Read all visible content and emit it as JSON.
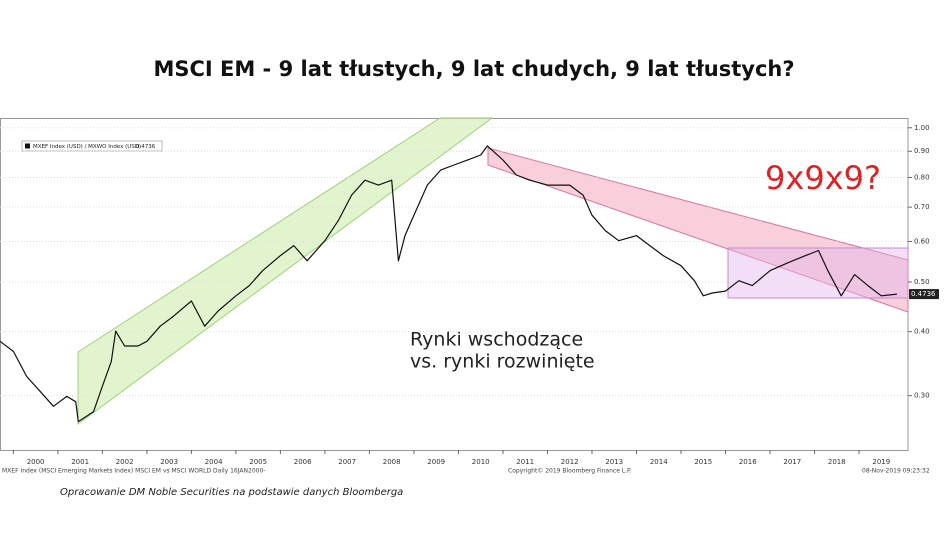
{
  "chart_data": {
    "type": "line",
    "title": "MSCI EM -  9 lat tłustych, 9 lat chudych, 9 lat tłustych?",
    "annotations": [
      "9x9x9?",
      "Rynki wschodzące",
      "vs. rynki rozwinięte"
    ],
    "footer_left": "MXEF Index (MSCI Emerging Markets Index) MSCI EM vs MSCI WORLD  Daily 16JAN2000-",
    "footer_center": "Copyright© 2019 Bloomberg Finance L.P.",
    "footer_right": "08-Nov-2019 09:23:32",
    "source": "Opracowanie DM Noble Securities na podstawie danych Bloomberga",
    "last_value": 0.4736,
    "log_scale": true,
    "grid": true,
    "x": [
      1999.7,
      2000.0,
      2000.3,
      2000.6,
      2000.9,
      2001.2,
      2001.4,
      2001.46,
      2001.8,
      2002.0,
      2002.2,
      2002.3,
      2002.5,
      2002.8,
      2003.0,
      2003.3,
      2003.6,
      2004.0,
      2004.3,
      2004.6,
      2005.0,
      2005.3,
      2005.6,
      2006.0,
      2006.3,
      2006.6,
      2007.0,
      2007.3,
      2007.6,
      2007.9,
      2008.2,
      2008.5,
      2008.65,
      2008.8,
      2009.0,
      2009.3,
      2009.6,
      2009.9,
      2010.2,
      2010.5,
      2010.65,
      2011.0,
      2011.3,
      2011.6,
      2012.0,
      2012.5,
      2012.8,
      2013.0,
      2013.3,
      2013.6,
      2014.0,
      2014.3,
      2014.6,
      2015.0,
      2015.3,
      2015.5,
      2015.7,
      2016.0,
      2016.3,
      2016.6,
      2017.0,
      2017.4,
      2017.8,
      2018.09,
      2018.3,
      2018.6,
      2018.9,
      2019.2,
      2019.5,
      2019.85
    ],
    "series": [
      {
        "name": "MXEF Index (USD) / MXWO Index (USD)",
        "color": "#111111",
        "values": [
          0.383,
          0.366,
          0.327,
          0.306,
          0.286,
          0.299,
          0.292,
          0.267,
          0.279,
          0.313,
          0.35,
          0.401,
          0.375,
          0.375,
          0.383,
          0.41,
          0.429,
          0.459,
          0.41,
          0.439,
          0.47,
          0.492,
          0.526,
          0.563,
          0.589,
          0.55,
          0.602,
          0.659,
          0.739,
          0.79,
          0.773,
          0.79,
          0.55,
          0.616,
          0.675,
          0.773,
          0.827,
          0.846,
          0.865,
          0.885,
          0.922,
          0.865,
          0.809,
          0.79,
          0.773,
          0.773,
          0.739,
          0.675,
          0.63,
          0.602,
          0.616,
          0.589,
          0.563,
          0.538,
          0.503,
          0.47,
          0.476,
          0.48,
          0.503,
          0.492,
          0.526,
          0.545,
          0.563,
          0.576,
          0.526,
          0.47,
          0.517,
          0.492,
          0.47,
          0.4736
        ]
      }
    ],
    "xlim": [
      1999.7,
      2020.1
    ],
    "xticks": [
      2000,
      2001,
      2002,
      2003,
      2004,
      2005,
      2006,
      2007,
      2008,
      2009,
      2010,
      2011,
      2012,
      2013,
      2014,
      2015,
      2016,
      2017,
      2018,
      2019
    ],
    "ylim": [
      0.235,
      1.045
    ],
    "yticks": [
      {
        "value": 1.0,
        "label": "1.00"
      },
      {
        "value": 0.9,
        "label": "0.90"
      },
      {
        "value": 0.8,
        "label": "0.80"
      },
      {
        "value": 0.7,
        "label": "0.70"
      },
      {
        "value": 0.6,
        "label": "0.60"
      },
      {
        "value": 0.5,
        "label": "0.50"
      },
      {
        "value": 0.4,
        "label": "0.40"
      },
      {
        "value": 0.3,
        "label": "0.30"
      }
    ]
  }
}
